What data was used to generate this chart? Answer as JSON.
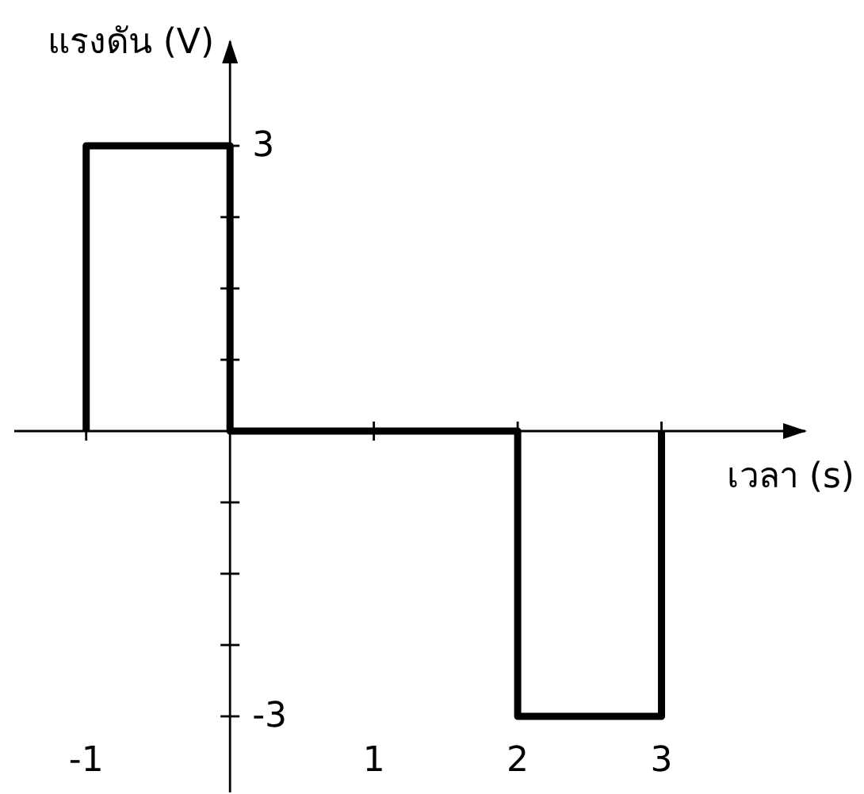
{
  "chart_data": {
    "type": "line",
    "xlabel": "เวลา (s)",
    "ylabel": "แรงดัน (V)",
    "x": [
      -1,
      -1,
      0,
      0,
      2,
      2,
      3,
      3
    ],
    "series": [
      {
        "color": "#000000",
        "values": [
          0,
          3,
          3,
          0,
          0,
          -3,
          -3,
          0
        ]
      }
    ],
    "xlim": [
      -1.5,
      4
    ],
    "ylim": [
      -3.8,
      4.1
    ],
    "xticks": [
      -1,
      1,
      2,
      3
    ],
    "yticks": [
      -3,
      {
        "value": -2.25,
        "label": null
      },
      {
        "value": -1.5,
        "label": null
      },
      {
        "value": -0.75,
        "label": null
      },
      {
        "value": 0.75,
        "label": null
      },
      {
        "value": 1.5,
        "label": null
      },
      {
        "value": 2.25,
        "label": null
      },
      3
    ],
    "marker": "none",
    "line_style": "solid"
  }
}
